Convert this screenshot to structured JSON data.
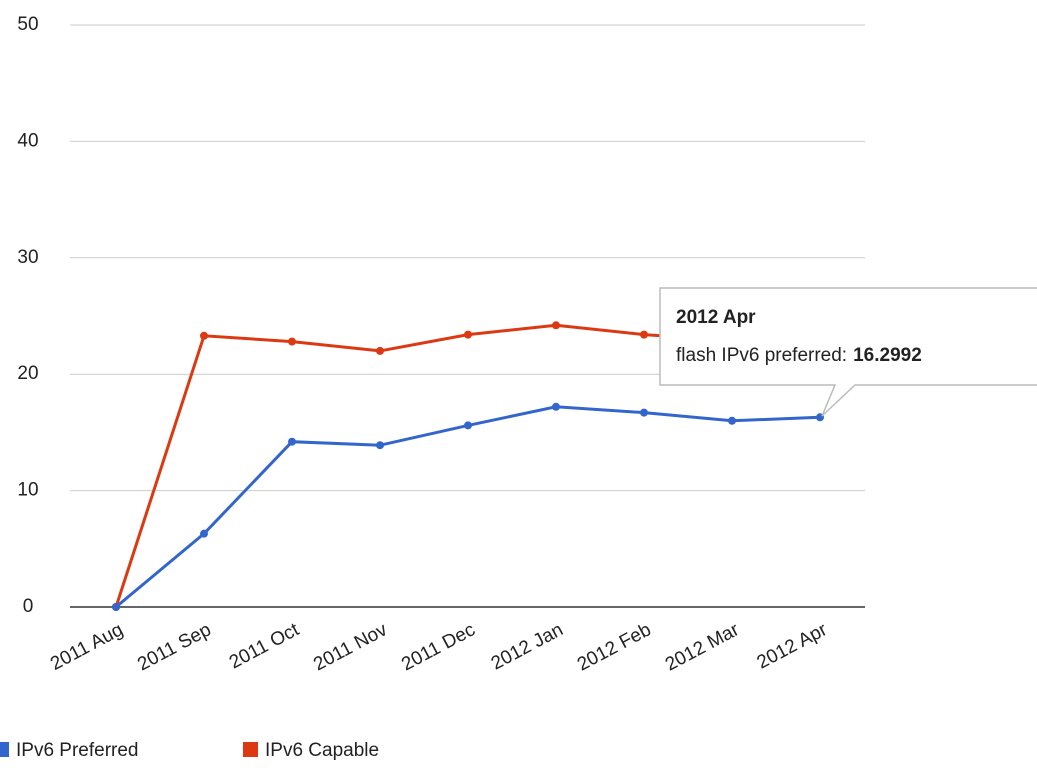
{
  "chart_data": {
    "type": "line",
    "categories": [
      "2011 Aug",
      "2011 Sep",
      "2011 Oct",
      "2011 Nov",
      "2011 Dec",
      "2012 Jan",
      "2012 Feb",
      "2012 Mar",
      "2012 Apr"
    ],
    "series": [
      {
        "name": "IPv6 Preferred",
        "color": "#3366cc",
        "values": [
          0,
          6.3,
          14.2,
          13.9,
          15.6,
          17.2,
          16.7,
          16.0,
          16.2992
        ]
      },
      {
        "name": "IPv6 Capable",
        "color": "#dc3912",
        "values": [
          0,
          23.3,
          22.8,
          22.0,
          23.4,
          24.2,
          23.4,
          22.9,
          23.1
        ]
      }
    ],
    "ylim": [
      0,
      50
    ],
    "yticks": [
      0,
      10,
      20,
      30,
      40,
      50
    ],
    "grid": true,
    "tooltip": {
      "label": "flash IPv6 preferred:"
    }
  }
}
